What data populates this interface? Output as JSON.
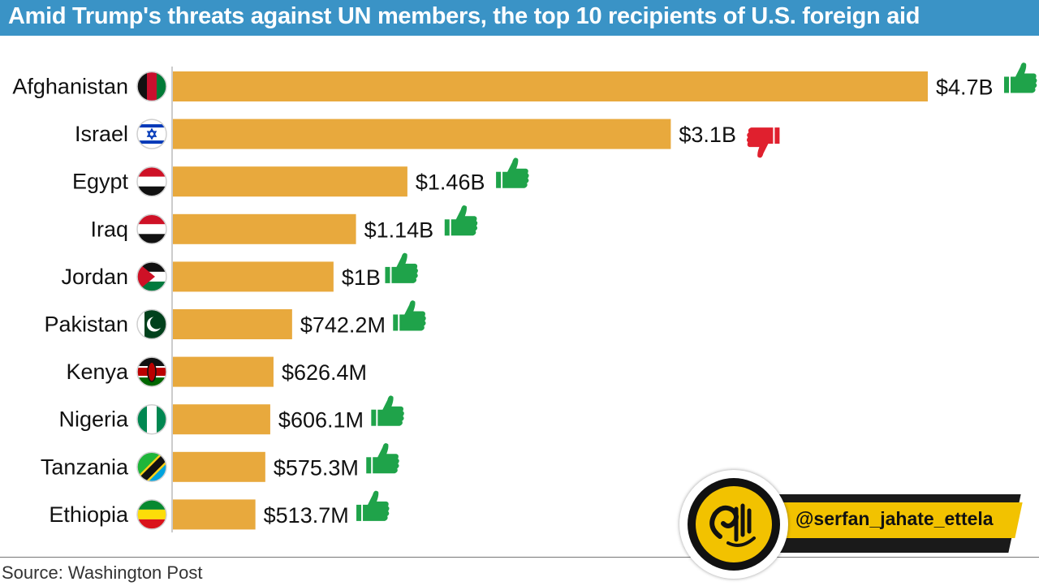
{
  "title": "Amid Trump's threats against UN members, the top 10 recipients of U.S. foreign aid",
  "source": "Source: Washington Post",
  "watermark": {
    "handle": "@serfan_jahate_ettela",
    "logo_text": "اطلاع صرفا جهت"
  },
  "colors": {
    "title_bg": "#3a93c6",
    "bar": "#e8a93d",
    "thumb_up": "#1fa34a",
    "thumb_down": "#e0202e",
    "handle_bg": "#f2c200"
  },
  "chart_data": {
    "type": "bar",
    "orientation": "horizontal",
    "unit": "USD",
    "categories": [
      "Afghanistan",
      "Israel",
      "Egypt",
      "Iraq",
      "Jordan",
      "Pakistan",
      "Kenya",
      "Nigeria",
      "Tanzania",
      "Ethiopia"
    ],
    "values": [
      4700,
      3100,
      1460,
      1140,
      1000,
      742.2,
      626.4,
      606.1,
      575.3,
      513.7
    ],
    "value_unit": "million USD",
    "labels": [
      "$4.7B",
      "$3.1B",
      "$1.46B",
      "$1.14B",
      "$1B",
      "$742.2M",
      "$626.4M",
      "$606.1M",
      "$575.3M",
      "$513.7M"
    ],
    "vote_icons": [
      "thumbs-up",
      "thumbs-down",
      "thumbs-up",
      "thumbs-up",
      "thumbs-up",
      "thumbs-up",
      "none",
      "thumbs-up",
      "thumbs-up",
      "thumbs-up"
    ],
    "flags": [
      "afghanistan-flag",
      "israel-flag",
      "egypt-flag",
      "iraq-flag",
      "jordan-flag",
      "pakistan-flag",
      "kenya-flag",
      "nigeria-flag",
      "tanzania-flag",
      "ethiopia-flag"
    ],
    "title": "Amid Trump's threats against UN members, the top 10 recipients of U.S. foreign aid",
    "xlabel": "",
    "ylabel": "",
    "grid": false,
    "legend": "none"
  }
}
